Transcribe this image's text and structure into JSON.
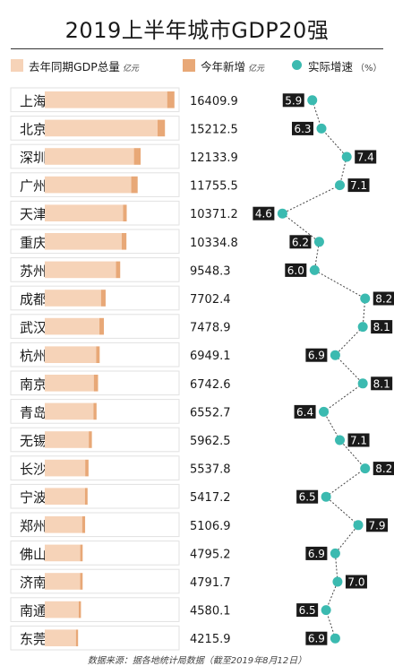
{
  "chart_data": {
    "type": "bar",
    "title": "2019上半年城市GDP20强",
    "legend": {
      "base_label": "去年同期GDP总量",
      "base_unit": "亿元",
      "increase_label": "今年新增",
      "increase_unit": "亿元",
      "growth_label": "实际增速",
      "growth_unit": "（%）"
    },
    "categories": [
      "上海",
      "北京",
      "深圳",
      "广州",
      "天津",
      "重庆",
      "苏州",
      "成都",
      "武汉",
      "杭州",
      "南京",
      "青岛",
      "无锡",
      "长沙",
      "宁波",
      "郑州",
      "佛山",
      "济南",
      "南通",
      "东莞"
    ],
    "gdp_totals": [
      "16409.9",
      "15212.5",
      "12133.9",
      "11755.5",
      "10371.2",
      "10334.8",
      "9548.3",
      "7702.4",
      "7478.9",
      "6949.1",
      "6742.6",
      "6552.7",
      "5962.5",
      "5537.8",
      "5417.2",
      "5106.9",
      "4795.2",
      "4791.7",
      "4580.1",
      "4215.9"
    ],
    "series": [
      {
        "name": "去年同期GDP总量",
        "values": [
          15493,
          14274,
          11290,
          10943,
          9911,
          9733,
          9014,
          7117,
          6917,
          6500,
          6206,
          6160,
          5568,
          5116,
          5084,
          4732,
          4487,
          4480,
          4298,
          3943
        ]
      },
      {
        "name": "今年新增",
        "values": [
          917,
          938,
          844,
          813,
          460,
          602,
          534,
          585,
          562,
          449,
          537,
          393,
          395,
          422,
          333,
          375,
          308,
          312,
          282,
          273
        ]
      },
      {
        "name": "实际增速",
        "values": [
          5.9,
          6.3,
          7.4,
          7.1,
          4.6,
          6.2,
          6.0,
          8.2,
          8.1,
          6.9,
          8.1,
          6.4,
          7.1,
          8.2,
          6.5,
          7.9,
          6.9,
          7.0,
          6.5,
          6.9
        ]
      }
    ],
    "growth_labels": [
      "5.9",
      "6.3",
      "7.4",
      "7.1",
      "4.6",
      "6.2",
      "6.0",
      "8.2",
      "8.1",
      "6.9",
      "8.1",
      "6.4",
      "7.1",
      "8.2",
      "6.5",
      "7.9",
      "6.9",
      "7.0",
      "6.5",
      "6.9"
    ],
    "growth_label_side": [
      "left",
      "left",
      "right",
      "right",
      "left",
      "left",
      "left",
      "right",
      "right",
      "left",
      "right",
      "left",
      "right",
      "right",
      "left",
      "right",
      "left",
      "right",
      "left",
      "left"
    ],
    "growth_range": [
      4.0,
      8.6
    ],
    "bar_max": 17000,
    "colors": {
      "base": "#f6d3b8",
      "increase": "#e8a877",
      "growth": "#3bbab0",
      "label_bg": "#1a1a1a",
      "label_text": "#ffffff",
      "row_border": "#e2e2e2",
      "connector": "#444444"
    },
    "grid": false,
    "legend_position": "top",
    "source_note": "数据来源：据各地统计局数据（截至2019年8月12日）"
  }
}
